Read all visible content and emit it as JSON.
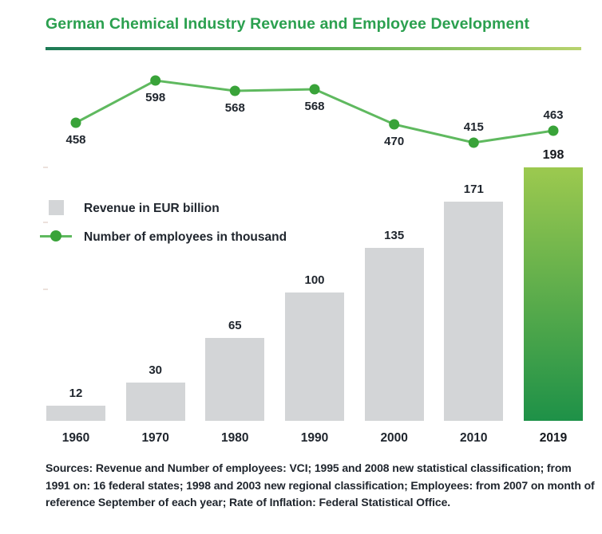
{
  "title": "German Chemical Industry Revenue and Employee Development",
  "legend": {
    "revenue": "Revenue in EUR billion",
    "employees": "Number of employees in thousand"
  },
  "sources": "Sources: Revenue and Number of employees: VCI; 1995 and 2008 new statistical classification; from 1991 on: 16 federal states; 1998 and 2003 new regional classification; Employees: from 2007 on month of reference September of each year; Rate of Inflation: Federal Statistical Office.",
  "colors": {
    "title_green": "#2ba04f",
    "rule_start": "#1d7a56",
    "rule_mid": "#58ad52",
    "rule_end": "#b8d36e",
    "line_green": "#5fb95f",
    "dot_green": "#39a339",
    "bar_gray": "#d3d5d7",
    "bar_green_top": "#9cc94f",
    "bar_green_bottom": "#1e9148",
    "text_dark": "#20262e"
  },
  "chart_data": {
    "type": "bar",
    "subtype": "bar-line-combo",
    "title": "German Chemical Industry Revenue and Employee Development",
    "categories": [
      "1960",
      "1970",
      "1980",
      "1990",
      "2000",
      "2010",
      "2019"
    ],
    "series": [
      {
        "name": "Revenue in EUR billion",
        "type": "bar",
        "values": [
          12,
          30,
          65,
          100,
          135,
          171,
          198
        ]
      },
      {
        "name": "Number of employees in thousand",
        "type": "line",
        "values": [
          458,
          598,
          568,
          568,
          470,
          415,
          463
        ]
      }
    ],
    "highlight_category": "2019",
    "data_labels": true,
    "gridlines": false,
    "legend_position": "middle-left",
    "xlabel": "",
    "ylabel": ""
  }
}
